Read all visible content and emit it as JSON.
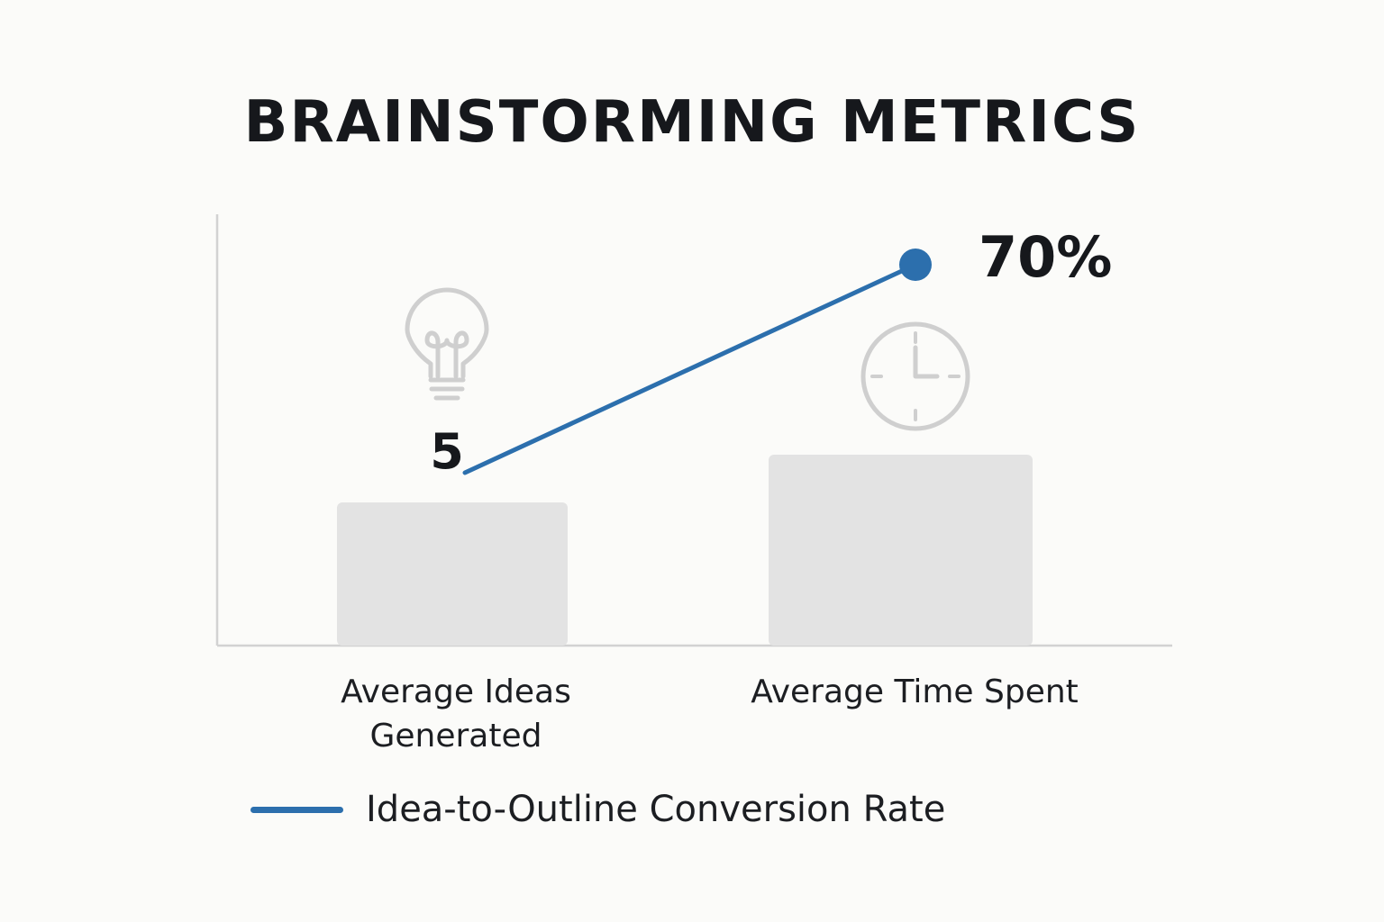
{
  "chart_data": {
    "type": "bar",
    "title": "BRAINSTORMING METRICS",
    "categories": [
      "Average Ideas\nGenerated",
      "Average Time Spent"
    ],
    "bars": {
      "relative_heights": [
        0.42,
        0.56
      ]
    },
    "series": [
      {
        "name": "Idea-to-Outline Conversion Rate",
        "type": "line",
        "points": [
          {
            "category": 0,
            "label": "5"
          },
          {
            "category": 1,
            "label": "70%"
          }
        ]
      }
    ],
    "icons": [
      "lightbulb-icon",
      "clock-icon"
    ],
    "legend": {
      "position": "bottom-left"
    },
    "grid": false,
    "colors": {
      "background": "#fbfbf9",
      "bar": "#e3e3e3",
      "line": "#2c6fad",
      "axis": "#d2d2d2",
      "icon": "#cfcfcf",
      "text": "#16181c"
    }
  }
}
